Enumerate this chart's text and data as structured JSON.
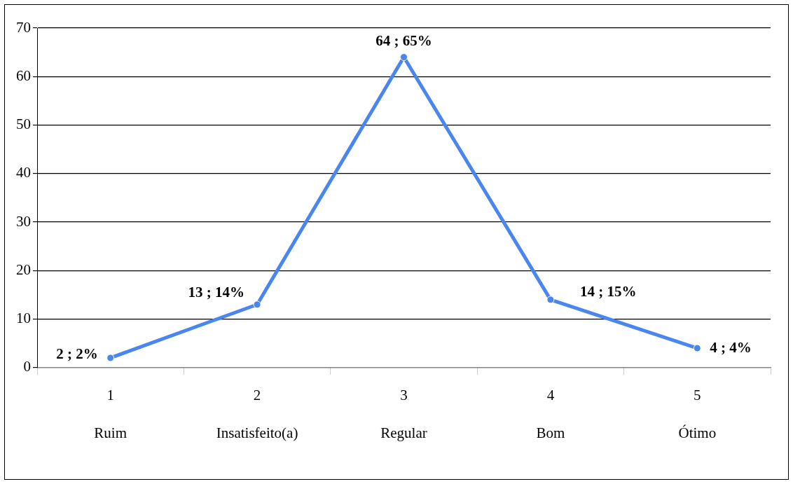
{
  "chart_data": {
    "type": "line",
    "categories": [
      "1\nRuim",
      "2\nInsatisfeito(a)",
      "3\nRegular",
      "4\nBom",
      "5\nÓtimo"
    ],
    "series": [
      {
        "color": "#4a86f0",
        "values": [
          2,
          13,
          64,
          14,
          4
        ],
        "value_labels": [
          "2 ; 2%",
          "13 ; 14%",
          "64 ; 65%",
          "14 ; 15%",
          "4 ; 4%"
        ]
      }
    ],
    "ylim": [
      0,
      70
    ],
    "yticks": [
      0,
      10,
      20,
      30,
      40,
      50,
      60,
      70
    ],
    "grid": "y",
    "legend": false,
    "marker": "circle",
    "line_style": "solid"
  }
}
